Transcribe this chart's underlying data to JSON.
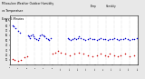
{
  "title": "Milwaukee Weather Outdoor Humidity",
  "title2": "vs Temperature",
  "title3": "Every 5 Minutes",
  "background_color": "#e8e8e8",
  "plot_background": "#ffffff",
  "blue_color": "#0000cc",
  "red_color": "#cc0000",
  "legend_red_label": "Temp",
  "legend_blue_label": "Humidity",
  "ylim": [
    0,
    100
  ],
  "xlim": [
    0,
    288
  ],
  "grid_color": "#aaaaaa",
  "grid_interval": 18,
  "humidity_x": [
    5,
    8,
    12,
    18,
    22,
    40,
    42,
    45,
    47,
    50,
    52,
    55,
    58,
    62,
    65,
    68,
    72,
    75,
    78,
    82,
    85,
    88,
    92,
    130,
    132,
    136,
    140,
    144,
    148,
    152,
    156,
    160,
    165,
    170,
    175,
    180,
    185,
    190,
    195,
    200,
    205,
    210,
    215,
    220,
    225,
    230,
    235,
    240,
    245,
    250,
    255,
    260,
    265,
    270,
    275,
    280,
    285
  ],
  "humidity_y": [
    80,
    78,
    75,
    70,
    65,
    60,
    58,
    55,
    60,
    62,
    58,
    55,
    52,
    50,
    55,
    60,
    62,
    60,
    58,
    55,
    52,
    50,
    55,
    55,
    52,
    50,
    52,
    55,
    52,
    55,
    58,
    55,
    52,
    50,
    52,
    55,
    53,
    52,
    50,
    52,
    55,
    53,
    52,
    50,
    52,
    53,
    55,
    52,
    50,
    52,
    53,
    55,
    52,
    50,
    52,
    53,
    55
  ],
  "temp_x": [
    5,
    10,
    18,
    25,
    32,
    38,
    95,
    102,
    108,
    115,
    125,
    135,
    145,
    155,
    165,
    175,
    185,
    195,
    205,
    215,
    220,
    225,
    235,
    242,
    250,
    260,
    270,
    280
  ],
  "temp_y": [
    12,
    10,
    8,
    10,
    15,
    18,
    22,
    25,
    28,
    25,
    22,
    20,
    22,
    25,
    22,
    20,
    18,
    20,
    22,
    20,
    18,
    22,
    20,
    18,
    20,
    22,
    18,
    20
  ],
  "dot_size": 1.2,
  "yticks": [
    10,
    20,
    30,
    40,
    50,
    60,
    70,
    80,
    90
  ],
  "ytick_labels": [
    "10",
    "20",
    "30",
    "40",
    "50",
    "60",
    "70",
    "80",
    "90"
  ]
}
